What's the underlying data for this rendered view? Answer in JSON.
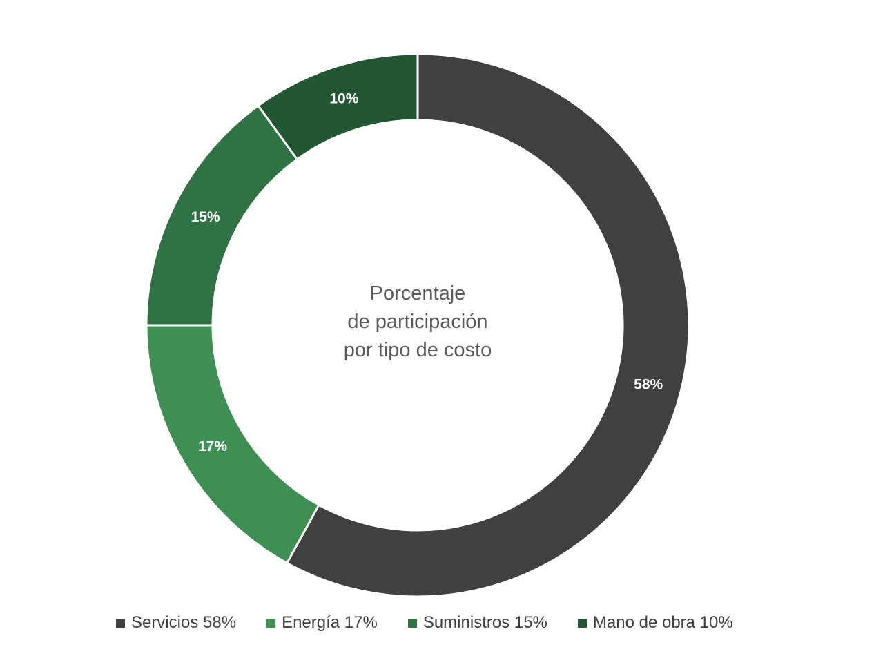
{
  "chart_data": {
    "type": "pie",
    "variant": "donut",
    "center_title_lines": [
      "Porcentaje",
      "de participación",
      "por tipo de costo"
    ],
    "categories": [
      "Servicios",
      "Energía",
      "Suministros",
      "Mano de obra"
    ],
    "values": [
      58,
      17,
      15,
      10
    ],
    "data_labels": [
      "58%",
      "17%",
      "15%",
      "10%"
    ],
    "legend_labels": [
      "Servicios 58%",
      "Energía 17%",
      "Suministros 15%",
      "Mano de obra 10%"
    ],
    "colors": [
      "#404040",
      "#3f8f55",
      "#2f7244",
      "#235633"
    ],
    "label_color": "#ffffff",
    "legend_placement": "bottom",
    "start_angle": "12 o'clock",
    "direction": "clockwise"
  }
}
